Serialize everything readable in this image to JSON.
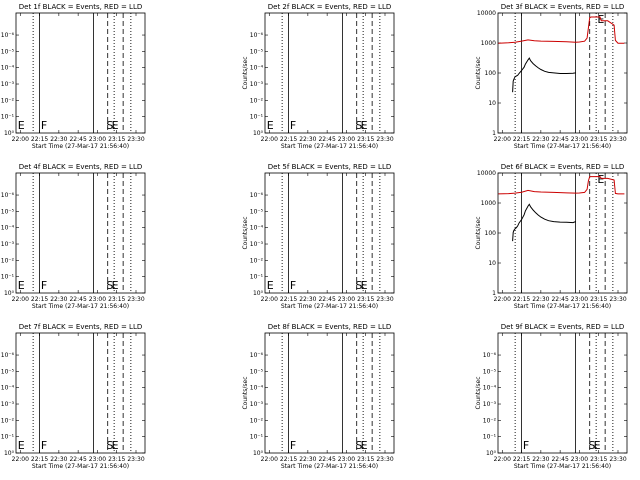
{
  "colors": {
    "events": "#000000",
    "lld": "#cc0000",
    "background": "#ffffff"
  },
  "panel_template": {
    "title_suffix": "BLACK = Events, RED = LLD",
    "ylabel": "Counts/sec",
    "xlabel": "Start Time (27-Mar-17 21:56:40)",
    "xticks": [
      "22:00",
      "22:15",
      "22:30",
      "22:45",
      "23:00",
      "23:15",
      "23:30"
    ],
    "xtick_minutes": [
      0,
      15,
      30,
      45,
      60,
      75,
      90
    ],
    "xlim_minutes": [
      -3.33,
      97
    ]
  },
  "chart_data": [
    {
      "type": "line",
      "title": "Det 1f BLACK = Events, RED = LLD",
      "ylabel": "Counts/sec",
      "xlabel": "Start Time (27-Mar-17 21:56:40)",
      "ylim": [
        1,
        1e-08
      ],
      "yscale": "log",
      "yticks": [
        "10⁰",
        "10⁻¹",
        "10⁻²",
        "10⁻³",
        "10⁻⁴",
        "10⁻⁵",
        "10⁻⁶"
      ],
      "flags": [
        {
          "label": "E",
          "x": -2
        },
        {
          "label": "F",
          "x": 16
        },
        {
          "label": "S",
          "x": 67
        },
        {
          "label": "E",
          "x": 71
        }
      ],
      "series": []
    },
    {
      "type": "line",
      "title": "Det 2f BLACK = Events, RED = LLD",
      "ylabel": "Counts/sec",
      "xlabel": "Start Time (27-Mar-17 21:56:40)",
      "ylim": [
        1,
        1e-08
      ],
      "yscale": "log",
      "yticks": [
        "10⁰",
        "10⁻¹",
        "10⁻²",
        "10⁻³",
        "10⁻⁴",
        "10⁻⁵",
        "10⁻⁶"
      ],
      "flags": [
        {
          "label": "E",
          "x": -2
        },
        {
          "label": "F",
          "x": 16
        },
        {
          "label": "S",
          "x": 67
        },
        {
          "label": "E",
          "x": 71
        }
      ],
      "series": []
    },
    {
      "type": "line",
      "title": "Det 3f BLACK = Events, RED = LLD",
      "ylabel": "Counts/sec",
      "xlabel": "Start Time (27-Mar-17 21:56:40)",
      "ylim": [
        1,
        13000
      ],
      "yscale": "log",
      "yticks": [
        "1",
        "10",
        "100",
        "1000",
        "10000"
      ],
      "flags": [
        {
          "label": "E",
          "x": 74
        }
      ],
      "series": [
        {
          "color": "#000000",
          "x": [
            8,
            8.5,
            9,
            10,
            11,
            12,
            13,
            15,
            17,
            18,
            20,
            21,
            22,
            24,
            26,
            28,
            30,
            33,
            36,
            40,
            45,
            50,
            55,
            57
          ],
          "y": [
            25,
            60,
            70,
            85,
            90,
            95,
            110,
            140,
            180,
            230,
            320,
            370,
            300,
            240,
            200,
            170,
            150,
            130,
            120,
            115,
            110,
            110,
            112,
            115
          ]
        },
        {
          "color": "#cc0000",
          "x": [
            -3,
            5,
            10,
            15,
            20,
            25,
            30,
            40,
            50,
            57,
            60,
            64,
            66,
            67,
            68,
            69,
            72,
            74,
            76,
            77,
            82,
            87,
            88,
            90,
            95
          ],
          "y": [
            1200,
            1250,
            1300,
            1420,
            1560,
            1450,
            1420,
            1380,
            1350,
            1300,
            1320,
            1400,
            1800,
            4000,
            9000,
            9500,
            9500,
            9500,
            9500,
            7000,
            7000,
            5000,
            1500,
            1200,
            1200
          ]
        }
      ]
    },
    {
      "type": "line",
      "title": "Det 4f BLACK = Events, RED = LLD",
      "ylabel": "Counts/sec",
      "xlabel": "Start Time (27-Mar-17 21:56:40)",
      "ylim": [
        1,
        1e-08
      ],
      "yscale": "log",
      "yticks": [
        "10⁰",
        "10⁻¹",
        "10⁻²",
        "10⁻³",
        "10⁻⁴",
        "10⁻⁵",
        "10⁻⁶"
      ],
      "flags": [
        {
          "label": "E",
          "x": -2
        },
        {
          "label": "F",
          "x": 16
        },
        {
          "label": "S",
          "x": 67
        },
        {
          "label": "E",
          "x": 71
        }
      ],
      "series": []
    },
    {
      "type": "line",
      "title": "Det 5f BLACK = Events, RED = LLD",
      "ylabel": "Counts/sec",
      "xlabel": "Start Time (27-Mar-17 21:56:40)",
      "ylim": [
        1,
        1e-08
      ],
      "yscale": "log",
      "yticks": [
        "10⁰",
        "10⁻¹",
        "10⁻²",
        "10⁻³",
        "10⁻⁴",
        "10⁻⁵",
        "10⁻⁶"
      ],
      "flags": [
        {
          "label": "E",
          "x": -2
        },
        {
          "label": "F",
          "x": 16
        },
        {
          "label": "S",
          "x": 67
        },
        {
          "label": "E",
          "x": 71
        }
      ],
      "series": []
    },
    {
      "type": "line",
      "title": "Det 6f BLACK = Events, RED = LLD",
      "ylabel": "Counts/sec",
      "xlabel": "Start Time (27-Mar-17 21:56:40)",
      "ylim": [
        1,
        13000
      ],
      "yscale": "log",
      "yticks": [
        "1",
        "10",
        "100",
        "1000",
        "10000"
      ],
      "flags": [
        {
          "label": "E",
          "x": 74
        }
      ],
      "series": [
        {
          "color": "#000000",
          "x": [
            8,
            8.5,
            9,
            10,
            11,
            12,
            13,
            15,
            17,
            18,
            20,
            21,
            22,
            24,
            26,
            28,
            30,
            33,
            36,
            40,
            45,
            50,
            55,
            57
          ],
          "y": [
            60,
            120,
            140,
            160,
            175,
            200,
            250,
            330,
            480,
            650,
            950,
            1100,
            900,
            700,
            560,
            470,
            400,
            340,
            300,
            280,
            270,
            265,
            260,
            280
          ]
        },
        {
          "color": "#cc0000",
          "x": [
            -3,
            5,
            10,
            15,
            20,
            25,
            30,
            40,
            50,
            57,
            60,
            64,
            66,
            67,
            68,
            69,
            72,
            74,
            76,
            77,
            82,
            87,
            88,
            90,
            95
          ],
          "y": [
            2500,
            2550,
            2650,
            2850,
            3300,
            3000,
            2900,
            2800,
            2700,
            2650,
            2680,
            2800,
            3600,
            7000,
            9800,
            9800,
            9800,
            9800,
            9800,
            8500,
            8500,
            7500,
            2600,
            2500,
            2500
          ]
        }
      ]
    },
    {
      "type": "line",
      "title": "Det 7f BLACK = Events, RED = LLD",
      "ylabel": "Counts/sec",
      "xlabel": "Start Time (27-Mar-17 21:56:40)",
      "ylim": [
        1,
        1e-08
      ],
      "yscale": "log",
      "yticks": [
        "10⁰",
        "10⁻¹",
        "10⁻²",
        "10⁻³",
        "10⁻⁴",
        "10⁻⁵",
        "10⁻⁶"
      ],
      "flags": [
        {
          "label": "E",
          "x": -2
        },
        {
          "label": "F",
          "x": 16
        },
        {
          "label": "S",
          "x": 67
        },
        {
          "label": "E",
          "x": 71
        }
      ],
      "series": []
    },
    {
      "type": "line",
      "title": "Det 8f BLACK = Events, RED = LLD",
      "ylabel": "Counts/sec",
      "xlabel": "Start Time (27-Mar-17 21:56:40)",
      "ylim": [
        1,
        1e-08
      ],
      "yscale": "log",
      "yticks": [
        "10⁰",
        "10⁻¹",
        "10⁻²",
        "10⁻³",
        "10⁻⁴",
        "10⁻⁵",
        "10⁻⁶"
      ],
      "flags": [
        {
          "label": "F",
          "x": 16
        },
        {
          "label": "S",
          "x": 67
        },
        {
          "label": "E",
          "x": 71
        }
      ],
      "series": []
    },
    {
      "type": "line",
      "title": "Det 9f BLACK = Events, RED = LLD",
      "ylabel": "Counts/sec",
      "xlabel": "Start Time (27-Mar-17 21:56:40)",
      "ylim": [
        1,
        1e-08
      ],
      "yscale": "log",
      "yticks": [
        "10⁰",
        "10⁻¹",
        "10⁻²",
        "10⁻³",
        "10⁻⁴",
        "10⁻⁵",
        "10⁻⁶"
      ],
      "flags": [
        {
          "label": "F",
          "x": 16
        },
        {
          "label": "S",
          "x": 67
        },
        {
          "label": "E",
          "x": 71
        }
      ],
      "series": []
    }
  ],
  "markers": {
    "solid_lines_min": [
      15,
      57
    ],
    "dashed_lines_min": [
      68,
      80
    ],
    "dotted_lines_min": [
      10,
      73,
      86
    ]
  }
}
